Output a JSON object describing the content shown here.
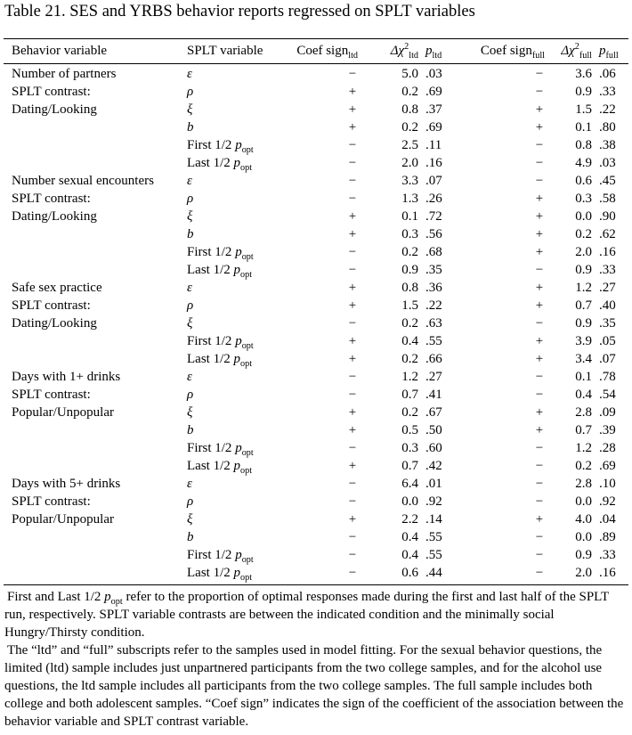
{
  "caption": "Table 21. SES and YRBS behavior reports regressed on SPLT variables",
  "headers": {
    "behavior": "Behavior variable",
    "splt": "SPLT variable",
    "coef": "Coef sign",
    "delta": "Δχ",
    "p": "p",
    "sub_ltd": "ltd",
    "sub_full": "full",
    "sup_2": "2"
  },
  "rows": [
    {
      "behavior": "Number of partners",
      "var": "ε",
      "cl": "−",
      "dl": "5.0",
      "pl": ".03",
      "cf": "−",
      "df": "3.6",
      "pf": ".06"
    },
    {
      "behavior": "SPLT contrast:",
      "var": "ρ",
      "cl": "+",
      "dl": "0.2",
      "pl": ".69",
      "cf": "−",
      "df": "0.9",
      "pf": ".33"
    },
    {
      "behavior": "Dating/Looking",
      "var": "ξ",
      "cl": "+",
      "dl": "0.8",
      "pl": ".37",
      "cf": "+",
      "df": "1.5",
      "pf": ".22"
    },
    {
      "behavior": "",
      "var": "b",
      "cl": "+",
      "dl": "0.2",
      "pl": ".69",
      "cf": "+",
      "df": "0.1",
      "pf": ".80"
    },
    {
      "behavior": "",
      "var": "First 1/2 ",
      "popt": true,
      "cl": "−",
      "dl": "2.5",
      "pl": ".11",
      "cf": "−",
      "df": "0.8",
      "pf": ".38"
    },
    {
      "behavior": "",
      "var": "Last 1/2 ",
      "popt": true,
      "cl": "−",
      "dl": "2.0",
      "pl": ".16",
      "cf": "−",
      "df": "4.9",
      "pf": ".03"
    },
    {
      "behavior": "Number sexual encounters",
      "var": "ε",
      "cl": "−",
      "dl": "3.3",
      "pl": ".07",
      "cf": "−",
      "df": "0.6",
      "pf": ".45"
    },
    {
      "behavior": "SPLT contrast:",
      "var": "ρ",
      "cl": "−",
      "dl": "1.3",
      "pl": ".26",
      "cf": "+",
      "df": "0.3",
      "pf": ".58"
    },
    {
      "behavior": "Dating/Looking",
      "var": "ξ",
      "cl": "+",
      "dl": "0.1",
      "pl": ".72",
      "cf": "+",
      "df": "0.0",
      "pf": ".90"
    },
    {
      "behavior": "",
      "var": "b",
      "cl": "+",
      "dl": "0.3",
      "pl": ".56",
      "cf": "+",
      "df": "0.2",
      "pf": ".62"
    },
    {
      "behavior": "",
      "var": "First 1/2 ",
      "popt": true,
      "cl": "−",
      "dl": "0.2",
      "pl": ".68",
      "cf": "+",
      "df": "2.0",
      "pf": ".16"
    },
    {
      "behavior": "",
      "var": "Last 1/2 ",
      "popt": true,
      "cl": "−",
      "dl": "0.9",
      "pl": ".35",
      "cf": "−",
      "df": "0.9",
      "pf": ".33"
    },
    {
      "behavior": "Safe sex practice",
      "var": "ε",
      "cl": "+",
      "dl": "0.8",
      "pl": ".36",
      "cf": "+",
      "df": "1.2",
      "pf": ".27"
    },
    {
      "behavior": "SPLT contrast:",
      "var": "ρ",
      "cl": "+",
      "dl": "1.5",
      "pl": ".22",
      "cf": "+",
      "df": "0.7",
      "pf": ".40"
    },
    {
      "behavior": "Dating/Looking",
      "var": "ξ",
      "cl": "−",
      "dl": "0.2",
      "pl": ".63",
      "cf": "−",
      "df": "0.9",
      "pf": ".35"
    },
    {
      "behavior": "",
      "var": "First 1/2 ",
      "popt": true,
      "cl": "+",
      "dl": "0.4",
      "pl": ".55",
      "cf": "+",
      "df": "3.9",
      "pf": ".05"
    },
    {
      "behavior": "",
      "var": "Last 1/2 ",
      "popt": true,
      "cl": "+",
      "dl": "0.2",
      "pl": ".66",
      "cf": "+",
      "df": "3.4",
      "pf": ".07"
    },
    {
      "behavior": "Days with 1+ drinks",
      "var": "ε",
      "cl": "−",
      "dl": "1.2",
      "pl": ".27",
      "cf": "−",
      "df": "0.1",
      "pf": ".78"
    },
    {
      "behavior": "SPLT contrast:",
      "var": "ρ",
      "cl": "−",
      "dl": "0.7",
      "pl": ".41",
      "cf": "−",
      "df": "0.4",
      "pf": ".54"
    },
    {
      "behavior": "Popular/Unpopular",
      "var": "ξ",
      "cl": "+",
      "dl": "0.2",
      "pl": ".67",
      "cf": "+",
      "df": "2.8",
      "pf": ".09"
    },
    {
      "behavior": "",
      "var": "b",
      "cl": "+",
      "dl": "0.5",
      "pl": ".50",
      "cf": "+",
      "df": "0.7",
      "pf": ".39"
    },
    {
      "behavior": "",
      "var": "First 1/2 ",
      "popt": true,
      "cl": "−",
      "dl": "0.3",
      "pl": ".60",
      "cf": "−",
      "df": "1.2",
      "pf": ".28"
    },
    {
      "behavior": "",
      "var": "Last 1/2 ",
      "popt": true,
      "cl": "+",
      "dl": "0.7",
      "pl": ".42",
      "cf": "−",
      "df": "0.2",
      "pf": ".69"
    },
    {
      "behavior": "Days with 5+ drinks",
      "var": "ε",
      "cl": "−",
      "dl": "6.4",
      "pl": ".01",
      "cf": "−",
      "df": "2.8",
      "pf": ".10"
    },
    {
      "behavior": "SPLT contrast:",
      "var": "ρ",
      "cl": "−",
      "dl": "0.0",
      "pl": ".92",
      "cf": "−",
      "df": "0.0",
      "pf": ".92"
    },
    {
      "behavior": "Popular/Unpopular",
      "var": "ξ",
      "cl": "+",
      "dl": "2.2",
      "pl": ".14",
      "cf": "+",
      "df": "4.0",
      "pf": ".04"
    },
    {
      "behavior": "",
      "var": "b",
      "cl": "−",
      "dl": "0.4",
      "pl": ".55",
      "cf": "−",
      "df": "0.0",
      "pf": ".89"
    },
    {
      "behavior": "",
      "var": "First 1/2 ",
      "popt": true,
      "cl": "−",
      "dl": "0.4",
      "pl": ".55",
      "cf": "−",
      "df": "0.9",
      "pf": ".33"
    },
    {
      "behavior": "",
      "var": "Last 1/2 ",
      "popt": true,
      "cl": "−",
      "dl": "0.6",
      "pl": ".44",
      "cf": "−",
      "df": "2.0",
      "pf": ".16"
    }
  ],
  "popt": {
    "p": "p",
    "sub": "opt"
  },
  "notes": {
    "n1_a": "First and Last 1/2 ",
    "n1_b": " refer to the proportion of optimal responses made during the first and last half of the SPLT run, respectively. SPLT variable contrasts are between the indicated condition and the minimally social Hungry/Thirsty condition.",
    "n2": "The “ltd” and “full” subscripts refer to the samples used in model fitting. For the sexual behavior questions, the limited (ltd) sample includes just unpartnered participants from the two college samples, and for the alcohol use questions, the ltd sample includes all participants from the two college samples. The full sample includes both college and both adolescent samples. “Coef sign” indicates the sign of the coefficient of the association between the behavior variable and SPLT contrast variable."
  }
}
